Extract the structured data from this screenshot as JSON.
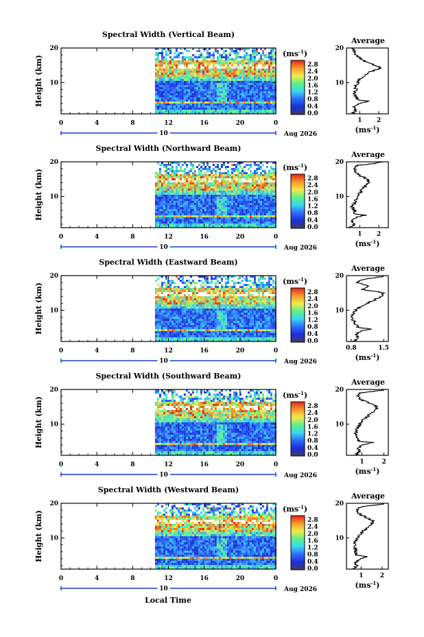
{
  "figure": {
    "xaxis_label": "Local Time",
    "date_label": "Aug 2026",
    "day_label": "10",
    "average_title": "Average",
    "unit_label": "(ms",
    "unit_sup": "-1",
    "unit_close": ")",
    "colorbar_ticks": [
      "2.8",
      "2.4",
      "2.0",
      "1.6",
      "1.2",
      "0.8",
      "0.4",
      "0.0"
    ],
    "colors": {
      "dark": "#3b3b6e",
      "blue": "#1a2fd6",
      "mid_blue": "#2f6bff",
      "cyan": "#38d8f0",
      "green": "#5ef08a",
      "yellow": "#f5e94a",
      "orange": "#f59a2a",
      "red": "#e8201a",
      "axis_blue": "#1b3ccf"
    }
  },
  "chart_data": [
    {
      "type": "heatmap",
      "title": "Spectral Width (Vertical Beam)",
      "ylabel": "Height (km)",
      "xlim": [
        0,
        24
      ],
      "ylim": [
        1,
        20
      ],
      "xticks": [
        "0",
        "4",
        "8",
        "12",
        "16",
        "20",
        "0"
      ],
      "yticks": [
        "20",
        "10"
      ],
      "data_start_hour": 10.5,
      "avg_xticks": [
        "1",
        "2"
      ],
      "avg_xlim": [
        0.3,
        2.5
      ],
      "avg_profile": [
        [
          1,
          0.6
        ],
        [
          2,
          0.8
        ],
        [
          3,
          0.7
        ],
        [
          4,
          1.0
        ],
        [
          4.7,
          1.5
        ],
        [
          5,
          0.9
        ],
        [
          6,
          0.8
        ],
        [
          7,
          0.7
        ],
        [
          8,
          0.8
        ],
        [
          9,
          0.75
        ],
        [
          10,
          0.9
        ],
        [
          11,
          1.0
        ],
        [
          12,
          1.2
        ],
        [
          13,
          1.5
        ],
        [
          13.8,
          1.9
        ],
        [
          14.3,
          2.1
        ],
        [
          15,
          1.8
        ],
        [
          16,
          1.3
        ],
        [
          17,
          1.0
        ],
        [
          18,
          0.8
        ],
        [
          19,
          0.7
        ],
        [
          20,
          0.6
        ]
      ]
    },
    {
      "type": "heatmap",
      "title": "Spectral Width (Northward Beam)",
      "ylabel": "Height (km)",
      "xlim": [
        0,
        24
      ],
      "ylim": [
        1,
        20
      ],
      "xticks": [
        "0",
        "4",
        "8",
        "12",
        "16",
        "20",
        "0"
      ],
      "yticks": [
        "20",
        "10"
      ],
      "data_start_hour": 10.5,
      "avg_xticks": [
        "1",
        "2"
      ],
      "avg_xlim": [
        0.3,
        2.5
      ],
      "avg_profile": [
        [
          1,
          0.5
        ],
        [
          2,
          0.7
        ],
        [
          3,
          0.6
        ],
        [
          4,
          0.8
        ],
        [
          4.6,
          1.3
        ],
        [
          5,
          0.7
        ],
        [
          6,
          0.7
        ],
        [
          7,
          0.6
        ],
        [
          8,
          0.7
        ],
        [
          9,
          0.8
        ],
        [
          10,
          0.9
        ],
        [
          11,
          1.0
        ],
        [
          12,
          1.1
        ],
        [
          13,
          1.3
        ],
        [
          14,
          1.5
        ],
        [
          15,
          1.4
        ],
        [
          16,
          1.0
        ],
        [
          17,
          0.8
        ],
        [
          18,
          0.7
        ],
        [
          19,
          0.9
        ],
        [
          19.5,
          1.8
        ],
        [
          20,
          2.2
        ]
      ]
    },
    {
      "type": "heatmap",
      "title": "Spectral Width (Eastward Beam)",
      "ylabel": "Height (km)",
      "xlim": [
        0,
        24
      ],
      "ylim": [
        1,
        20
      ],
      "xticks": [
        "0",
        "4",
        "8",
        "12",
        "16",
        "20",
        "0"
      ],
      "yticks": [
        "20",
        "10"
      ],
      "data_start_hour": 10.5,
      "avg_xticks": [
        "0.8",
        "1.5"
      ],
      "avg_xlim": [
        0.7,
        1.6
      ],
      "avg_profile": [
        [
          1,
          0.85
        ],
        [
          2,
          0.95
        ],
        [
          3,
          0.9
        ],
        [
          4,
          1.0
        ],
        [
          4.6,
          1.25
        ],
        [
          5,
          0.95
        ],
        [
          6,
          0.9
        ],
        [
          7,
          0.85
        ],
        [
          8,
          0.8
        ],
        [
          9,
          0.85
        ],
        [
          10,
          0.9
        ],
        [
          11,
          1.0
        ],
        [
          12,
          1.15
        ],
        [
          13,
          1.3
        ],
        [
          14,
          1.45
        ],
        [
          15,
          1.5
        ],
        [
          15.5,
          1.3
        ],
        [
          16,
          1.0
        ],
        [
          17,
          1.2
        ],
        [
          18,
          0.9
        ],
        [
          19,
          1.1
        ],
        [
          19.8,
          1.5
        ]
      ]
    },
    {
      "type": "heatmap",
      "title": "Spectral Width (Southward Beam)",
      "ylabel": "Height (km)",
      "xlim": [
        0,
        24
      ],
      "ylim": [
        1,
        20
      ],
      "xticks": [
        "0",
        "4",
        "8",
        "12",
        "16",
        "20",
        "0"
      ],
      "yticks": [
        "20",
        "10"
      ],
      "data_start_hour": 10.5,
      "avg_xticks": [
        "1",
        "2"
      ],
      "avg_xlim": [
        0.3,
        2.2
      ],
      "avg_profile": [
        [
          1,
          0.7
        ],
        [
          2,
          0.9
        ],
        [
          3,
          0.8
        ],
        [
          4,
          1.0
        ],
        [
          4.7,
          1.5
        ],
        [
          5,
          0.9
        ],
        [
          6,
          0.8
        ],
        [
          7,
          0.7
        ],
        [
          8,
          0.75
        ],
        [
          9,
          0.8
        ],
        [
          10,
          0.9
        ],
        [
          11,
          1.0
        ],
        [
          12,
          1.2
        ],
        [
          13,
          1.4
        ],
        [
          14,
          1.6
        ],
        [
          15,
          1.7
        ],
        [
          16,
          1.4
        ],
        [
          17,
          1.0
        ],
        [
          18,
          0.8
        ],
        [
          19,
          0.9
        ],
        [
          19.8,
          2.0
        ]
      ]
    },
    {
      "type": "heatmap",
      "title": "Spectral Width (Westward Beam)",
      "ylabel": "Height (km)",
      "xlim": [
        0,
        24
      ],
      "ylim": [
        1,
        20
      ],
      "xticks": [
        "0",
        "4",
        "8",
        "12",
        "16",
        "20",
        "0"
      ],
      "yticks": [
        "20",
        "10"
      ],
      "data_start_hour": 10.5,
      "avg_xticks": [
        "1",
        "2"
      ],
      "avg_xlim": [
        0.3,
        2.3
      ],
      "avg_profile": [
        [
          1,
          0.6
        ],
        [
          2,
          0.8
        ],
        [
          3,
          0.7
        ],
        [
          4,
          1.0
        ],
        [
          4.6,
          1.3
        ],
        [
          5,
          0.8
        ],
        [
          6,
          0.75
        ],
        [
          7,
          0.7
        ],
        [
          8,
          0.7
        ],
        [
          9,
          0.75
        ],
        [
          10,
          0.85
        ],
        [
          11,
          0.95
        ],
        [
          12,
          1.1
        ],
        [
          13,
          1.3
        ],
        [
          14,
          1.5
        ],
        [
          15,
          1.55
        ],
        [
          16,
          1.2
        ],
        [
          17,
          0.9
        ],
        [
          18,
          0.8
        ],
        [
          19,
          1.0
        ],
        [
          19.8,
          2.1
        ]
      ]
    }
  ]
}
